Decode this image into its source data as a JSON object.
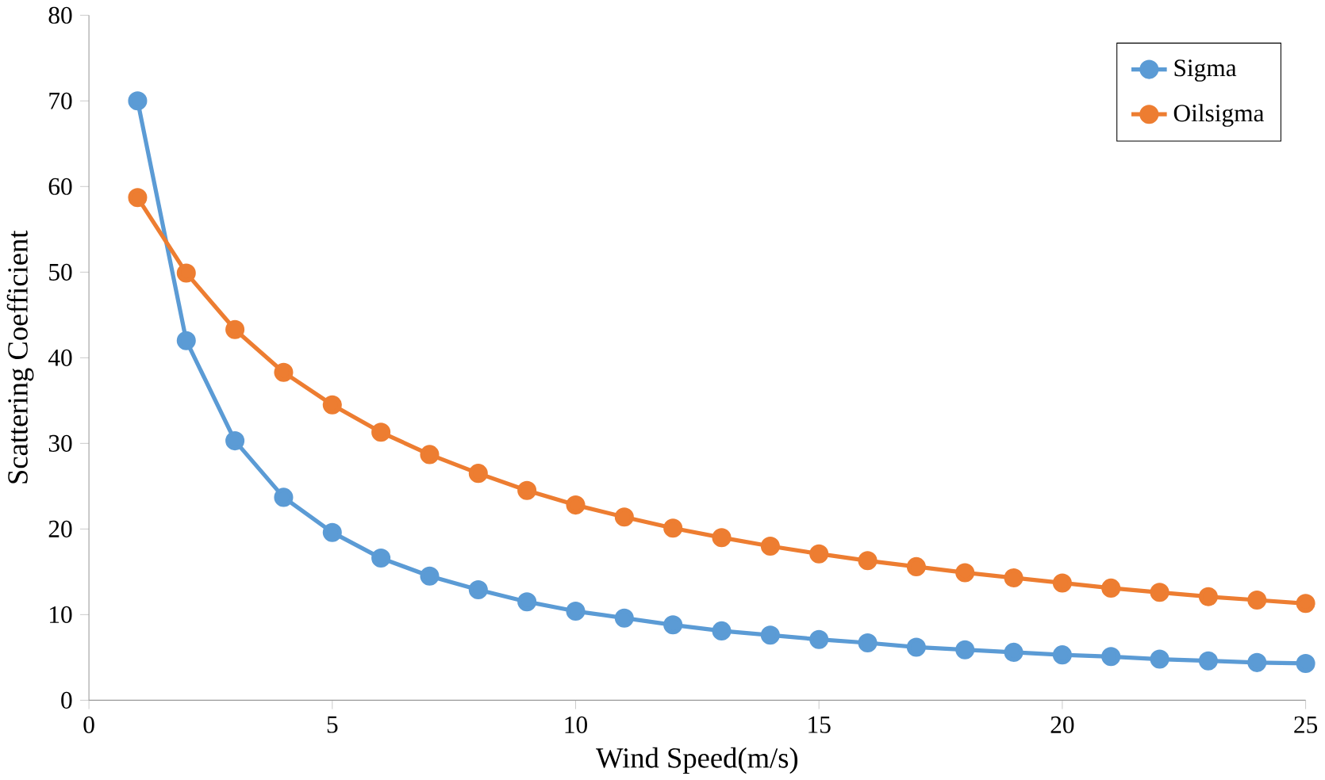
{
  "chart_data": {
    "type": "line",
    "xlabel": "Wind Speed(m/s)",
    "ylabel": "Scattering Coefficient",
    "x": [
      1,
      2,
      3,
      4,
      5,
      6,
      7,
      8,
      9,
      10,
      11,
      12,
      13,
      14,
      15,
      16,
      17,
      18,
      19,
      20,
      21,
      22,
      23,
      24,
      25
    ],
    "series": [
      {
        "name": "Sigma",
        "color": "#5b9bd5",
        "values": [
          70,
          42,
          30.3,
          23.7,
          19.6,
          16.6,
          14.5,
          12.9,
          11.5,
          10.4,
          9.6,
          8.8,
          8.1,
          7.6,
          7.1,
          6.7,
          6.2,
          5.9,
          5.6,
          5.3,
          5.1,
          4.8,
          4.6,
          4.4,
          4.3
        ]
      },
      {
        "name": "Oilsigma",
        "color": "#ed7d31",
        "values": [
          58.7,
          49.9,
          43.3,
          38.3,
          34.5,
          31.3,
          28.7,
          26.5,
          24.5,
          22.8,
          21.4,
          20.1,
          19.0,
          18.0,
          17.1,
          16.3,
          15.6,
          14.9,
          14.3,
          13.7,
          13.1,
          12.6,
          12.1,
          11.7,
          11.3
        ]
      }
    ],
    "xlim": [
      0,
      25
    ],
    "xticks": [
      0,
      5,
      10,
      15,
      20,
      25
    ],
    "ylim": [
      0,
      80
    ],
    "yticks": [
      0,
      10,
      20,
      30,
      40,
      50,
      60,
      70,
      80
    ],
    "legend": "top right",
    "marker": "circle",
    "line_style": "solid"
  }
}
